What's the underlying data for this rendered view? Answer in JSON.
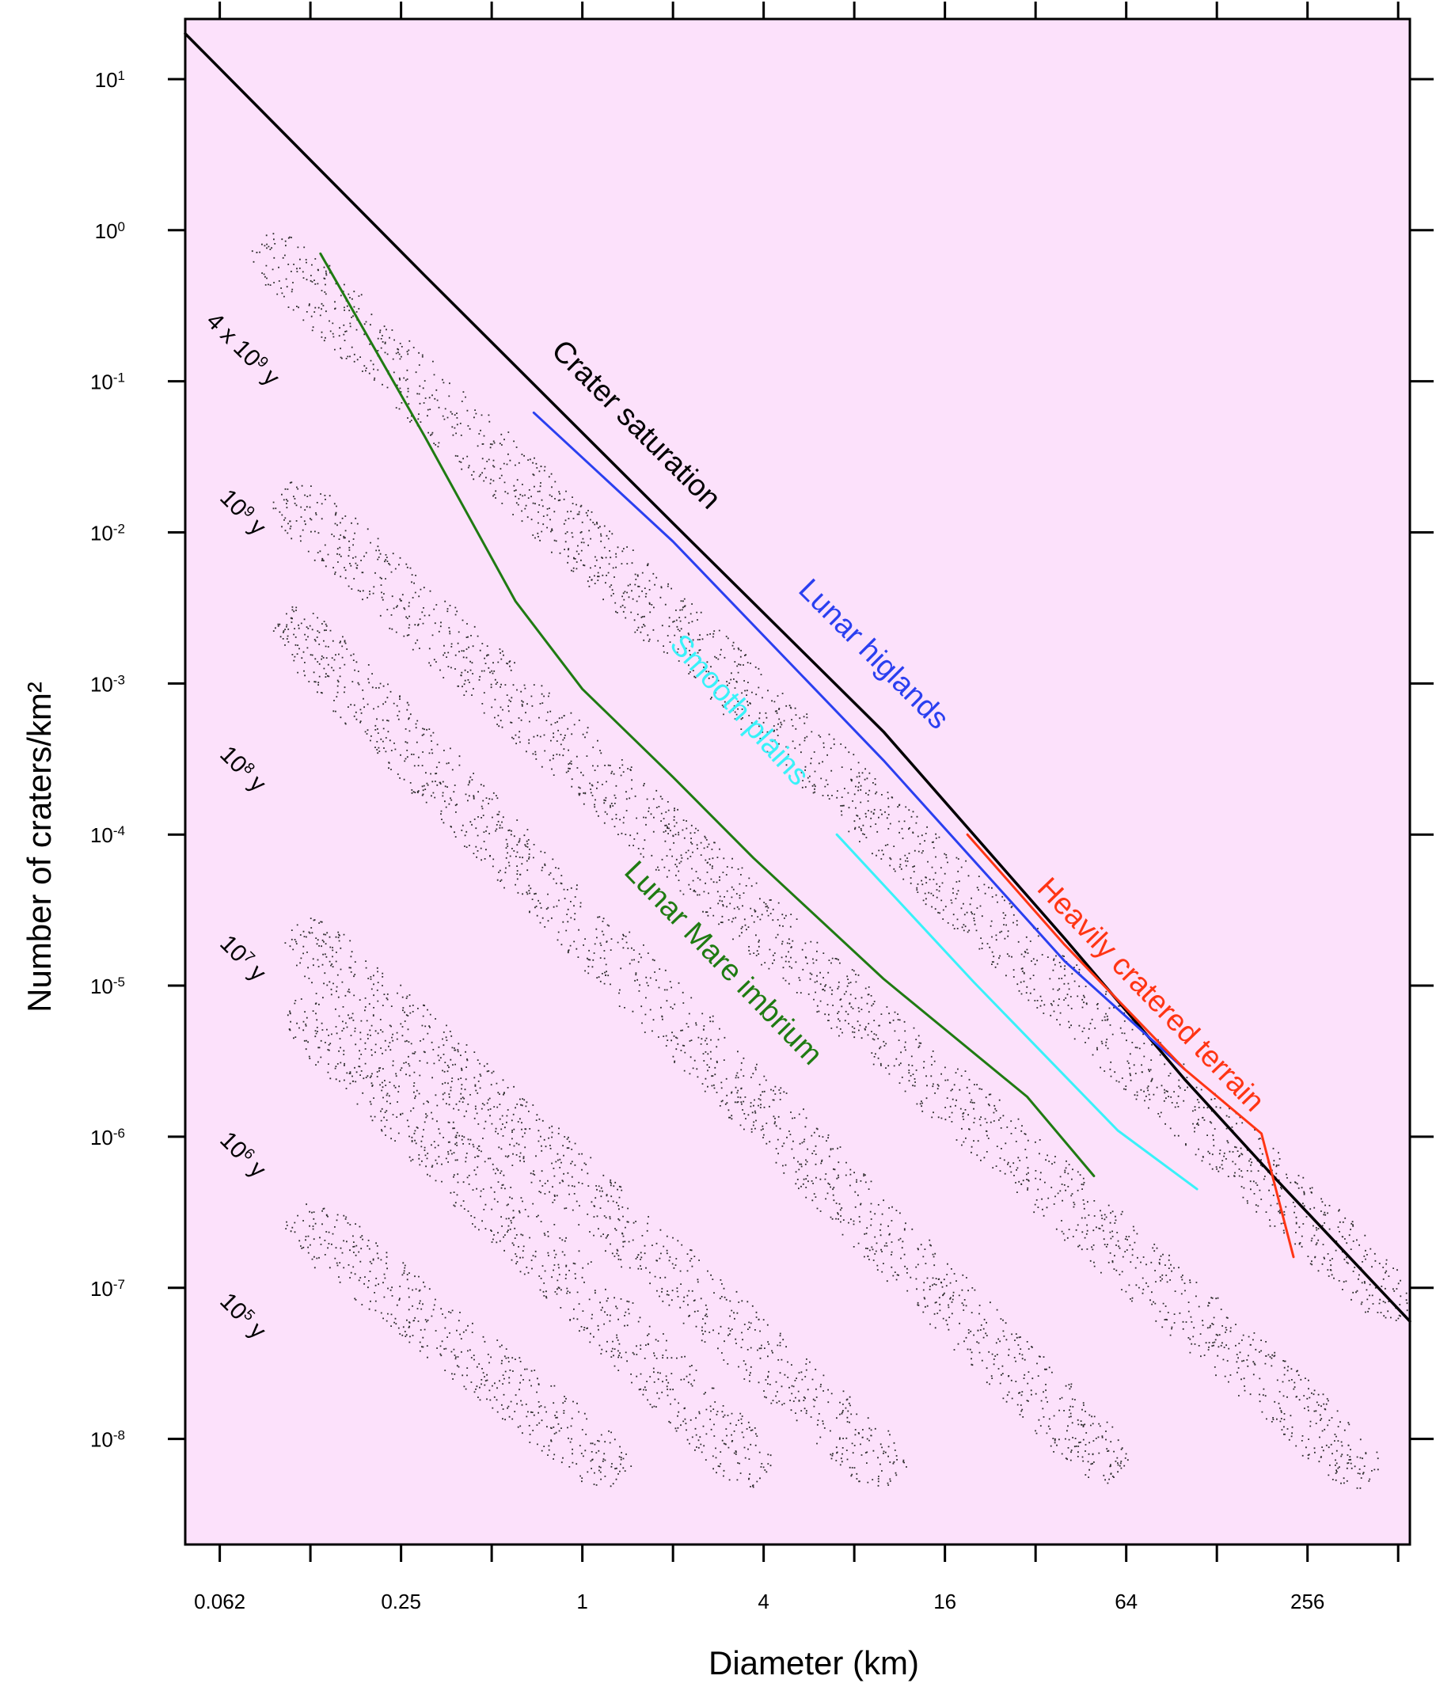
{
  "chart_data": {
    "type": "line",
    "xlabel": "Diameter (km)",
    "ylabel": "Number of craters/km²",
    "x_scale": "log",
    "y_scale": "log",
    "xlim": [
      0.048,
      560
    ],
    "ylim": [
      2e-09,
      25
    ],
    "background_color": "#fce1fb",
    "x_ticks": [
      {
        "value": 0.0625,
        "label": "0.062"
      },
      {
        "value": 0.125,
        "label": ""
      },
      {
        "value": 0.25,
        "label": "0.25"
      },
      {
        "value": 0.5,
        "label": ""
      },
      {
        "value": 1,
        "label": "1"
      },
      {
        "value": 2,
        "label": ""
      },
      {
        "value": 4,
        "label": "4"
      },
      {
        "value": 8,
        "label": ""
      },
      {
        "value": 16,
        "label": "16"
      },
      {
        "value": 32,
        "label": ""
      },
      {
        "value": 64,
        "label": "64"
      },
      {
        "value": 128,
        "label": ""
      },
      {
        "value": 256,
        "label": "256"
      },
      {
        "value": 512,
        "label": ""
      }
    ],
    "y_ticks": [
      {
        "exp": 1,
        "mantissa": "10",
        "sup": "1"
      },
      {
        "exp": 0,
        "mantissa": "10",
        "sup": "0"
      },
      {
        "exp": -1,
        "mantissa": "10",
        "sup": "-1"
      },
      {
        "exp": -2,
        "mantissa": "10",
        "sup": "-2"
      },
      {
        "exp": -3,
        "mantissa": "10",
        "sup": "-3"
      },
      {
        "exp": -4,
        "mantissa": "10",
        "sup": "-4"
      },
      {
        "exp": -5,
        "mantissa": "10",
        "sup": "-5"
      },
      {
        "exp": -6,
        "mantissa": "10",
        "sup": "-6"
      },
      {
        "exp": -7,
        "mantissa": "10",
        "sup": "-7"
      },
      {
        "exp": -8,
        "mantissa": "10",
        "sup": "-8"
      }
    ],
    "series": [
      {
        "name": "Crater saturation",
        "color": "#000000",
        "points": [
          [
            0.048,
            20
          ],
          [
            0.3,
            0.5
          ],
          [
            2,
            0.0115
          ],
          [
            10,
            0.00048
          ],
          [
            40,
            2.05e-05
          ],
          [
            100,
            2.4e-06
          ],
          [
            200,
            5.3e-07
          ],
          [
            560,
            6e-08
          ]
        ]
      },
      {
        "name": "Lunar higlands",
        "color": "#2a3ff0",
        "points": [
          [
            0.69,
            0.062
          ],
          [
            2,
            0.0087
          ],
          [
            10,
            0.00031
          ],
          [
            40,
            1.45e-05
          ],
          [
            100,
            2.8e-06
          ]
        ]
      },
      {
        "name": "Smooth plains",
        "color": "#39f2f9",
        "points": [
          [
            7,
            0.0001
          ],
          [
            20,
            1.05e-05
          ],
          [
            60,
            1.1e-06
          ],
          [
            110,
            4.5e-07
          ]
        ]
      },
      {
        "name": "Lunar Mare imbrium",
        "color": "#1f7b12",
        "points": [
          [
            0.135,
            0.7
          ],
          [
            0.3,
            0.043
          ],
          [
            0.6,
            0.0035
          ],
          [
            1,
            0.00092
          ],
          [
            2,
            0.00024
          ],
          [
            3.7,
            7e-05
          ],
          [
            10,
            1.11e-05
          ],
          [
            30,
            1.84e-06
          ],
          [
            50,
            5.5e-07
          ]
        ]
      },
      {
        "name": "Heavily cratered terrain",
        "color": "#ff3514",
        "points": [
          [
            19,
            0.0001
          ],
          [
            40,
            1.86e-05
          ],
          [
            100,
            2.8e-06
          ],
          [
            180,
            1.05e-06
          ],
          [
            230,
            1.6e-07
          ]
        ]
      }
    ],
    "isochron_labels": [
      {
        "text": "4 x 10",
        "sup": "9",
        "suffix": " y",
        "y_value": 0.15
      },
      {
        "text": "10",
        "sup": "9",
        "suffix": " y",
        "y_value": 0.0125
      },
      {
        "text": "10",
        "sup": "8",
        "suffix": " y",
        "y_value": 0.00025
      },
      {
        "text": "10",
        "sup": "7",
        "suffix": " y",
        "y_value": 1.4e-05
      },
      {
        "text": "10",
        "sup": "6",
        "suffix": " y",
        "y_value": 7e-07
      },
      {
        "text": "10",
        "sup": "5",
        "suffix": " y",
        "y_value": 6e-08
      }
    ],
    "isochron_bands": [
      {
        "start": [
          0.085,
          0.85
        ],
        "end": [
          540,
          7e-08
        ]
      },
      {
        "start": [
          0.1,
          0.019
        ],
        "end": [
          420,
          5.5e-09
        ]
      },
      {
        "start": [
          0.1,
          0.0028
        ],
        "end": [
          60,
          5.8e-09
        ]
      },
      {
        "start": [
          0.11,
          2.5e-05
        ],
        "end": [
          11,
          5.5e-09
        ]
      },
      {
        "start": [
          0.11,
          8e-06
        ],
        "end": [
          4,
          5.5e-09
        ]
      },
      {
        "start": [
          0.11,
          3.2e-07
        ],
        "end": [
          1.35,
          5.5e-09
        ]
      }
    ]
  }
}
